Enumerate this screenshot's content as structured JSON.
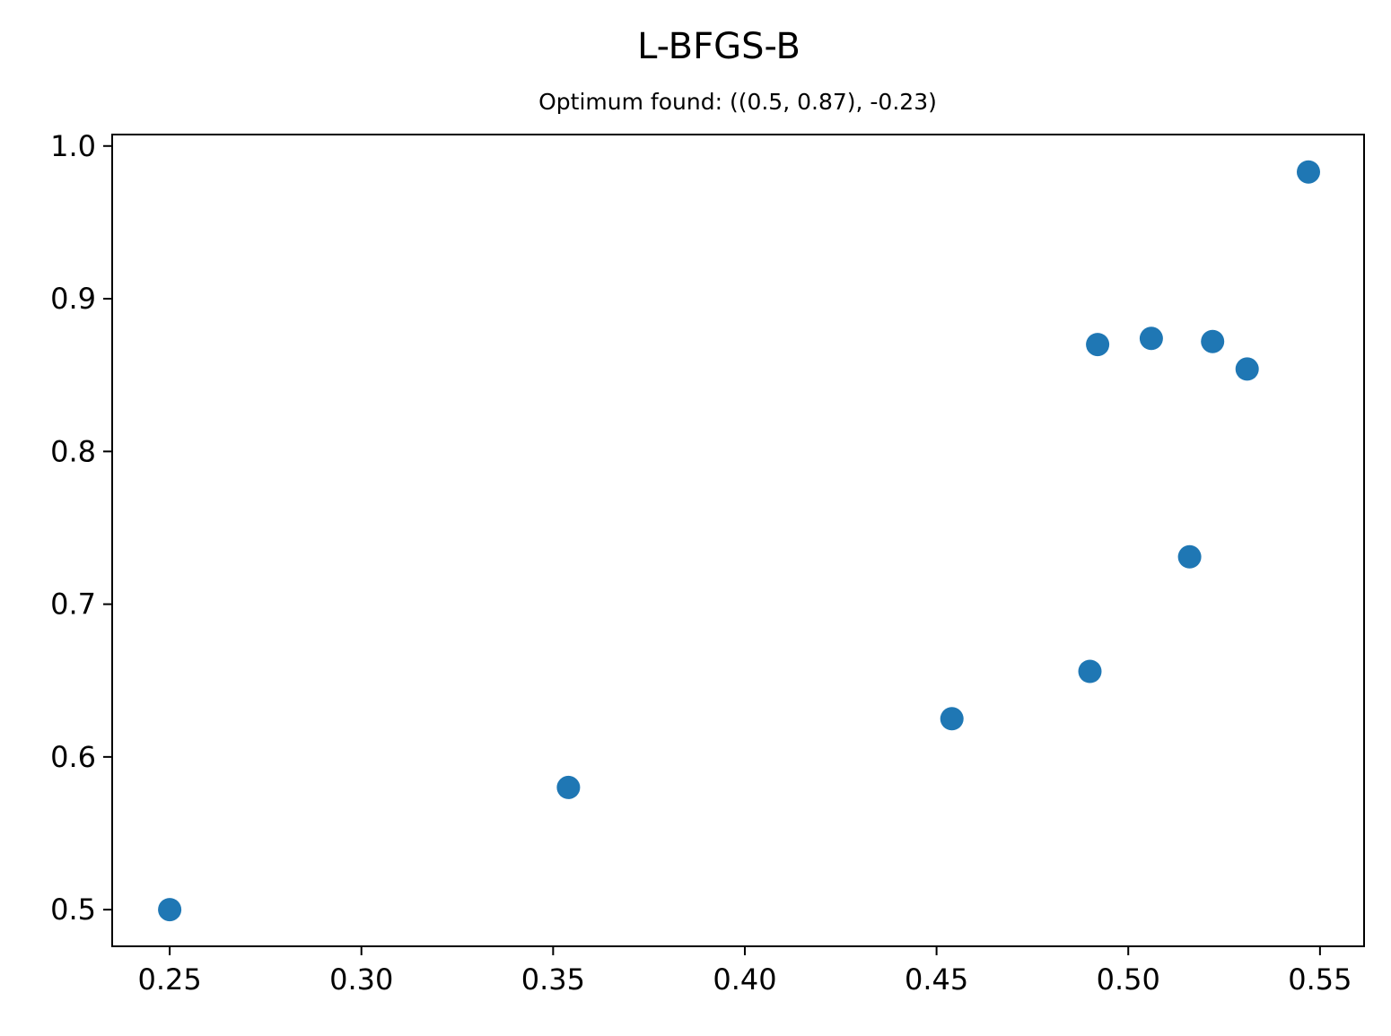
{
  "chart_data": {
    "type": "scatter",
    "title": "L-BFGS-B",
    "subtitle": "Optimum found: ((0.5, 0.87), -0.23)",
    "xlabel": "",
    "ylabel": "",
    "xlim": [
      0.235,
      0.5615
    ],
    "ylim": [
      0.476,
      1.0075
    ],
    "x_ticks": [
      0.25,
      0.3,
      0.35,
      0.4,
      0.45,
      0.5,
      0.55
    ],
    "x_tick_labels": [
      "0.25",
      "0.30",
      "0.35",
      "0.40",
      "0.45",
      "0.50",
      "0.55"
    ],
    "y_ticks": [
      0.5,
      0.6,
      0.7,
      0.8,
      0.9,
      1.0
    ],
    "y_tick_labels": [
      "0.5",
      "0.6",
      "0.7",
      "0.8",
      "0.9",
      "1.0"
    ],
    "grid": false,
    "series": [
      {
        "color": "#1f77b4",
        "points": [
          {
            "x": 0.25,
            "y": 0.5
          },
          {
            "x": 0.354,
            "y": 0.58
          },
          {
            "x": 0.454,
            "y": 0.625
          },
          {
            "x": 0.49,
            "y": 0.656
          },
          {
            "x": 0.492,
            "y": 0.87
          },
          {
            "x": 0.506,
            "y": 0.874
          },
          {
            "x": 0.516,
            "y": 0.731
          },
          {
            "x": 0.522,
            "y": 0.872
          },
          {
            "x": 0.531,
            "y": 0.854
          },
          {
            "x": 0.547,
            "y": 0.983
          }
        ]
      }
    ]
  }
}
